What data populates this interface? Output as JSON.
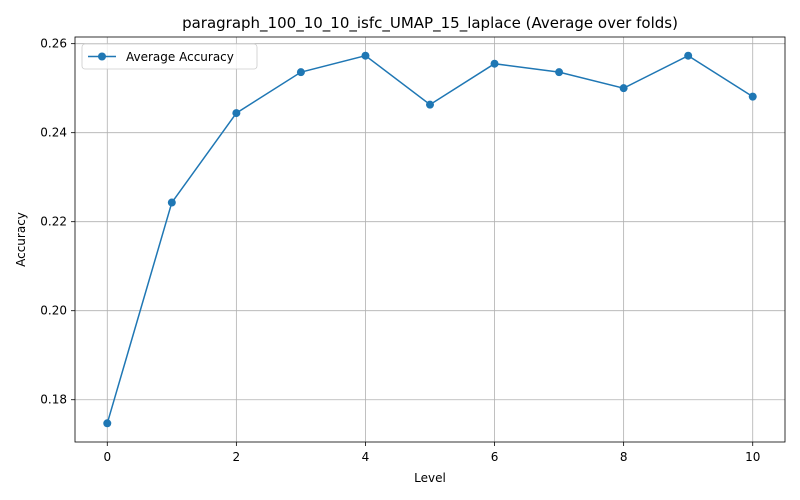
{
  "chart_data": {
    "type": "line",
    "title": "paragraph_100_10_10_isfc_UMAP_15_laplace (Average over folds)",
    "xlabel": "Level",
    "ylabel": "Accuracy",
    "xlim": [
      -0.5,
      10.5
    ],
    "ylim": [
      0.1705,
      0.2615
    ],
    "xticks": [
      0,
      2,
      4,
      6,
      8,
      10
    ],
    "yticks": [
      0.18,
      0.2,
      0.22,
      0.24,
      0.26
    ],
    "xtick_labels": [
      "0",
      "2",
      "4",
      "6",
      "8",
      "10"
    ],
    "ytick_labels": [
      "0.18",
      "0.20",
      "0.22",
      "0.24",
      "0.26"
    ],
    "grid": true,
    "legend_position": "upper-left",
    "series": [
      {
        "name": "Average Accuracy",
        "color": "#1f77b4",
        "marker": "circle",
        "x": [
          0,
          1,
          2,
          3,
          4,
          5,
          6,
          7,
          8,
          9,
          10
        ],
        "values": [
          0.1747,
          0.2243,
          0.2444,
          0.2536,
          0.2573,
          0.2463,
          0.2555,
          0.2536,
          0.25,
          0.2573,
          0.2481
        ]
      }
    ]
  }
}
